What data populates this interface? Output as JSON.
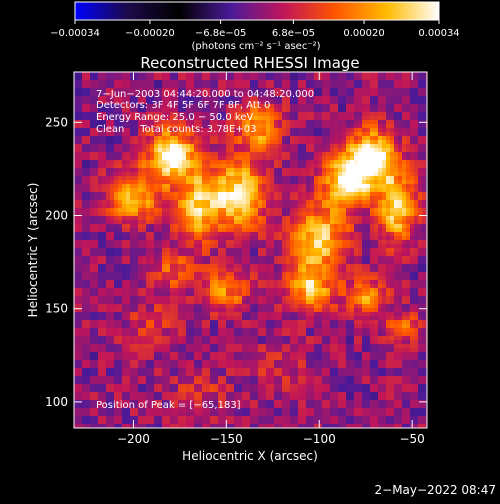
{
  "chart_data": {
    "type": "heatmap",
    "title": "Reconstructed RHESSI Image",
    "xlabel": "Heliocentric X (arcsec)",
    "ylabel": "Heliocentric Y (arcsec)",
    "xlim": [
      -232,
      -42
    ],
    "ylim": [
      86,
      277
    ],
    "x_ticks": [
      {
        "value": -200,
        "label": "−200"
      },
      {
        "value": -150,
        "label": "−150"
      },
      {
        "value": -100,
        "label": "−100"
      },
      {
        "value": -50,
        "label": "−50"
      }
    ],
    "y_ticks": [
      {
        "value": 100,
        "label": "100"
      },
      {
        "value": 150,
        "label": "150"
      },
      {
        "value": 200,
        "label": "200"
      },
      {
        "value": 250,
        "label": "250"
      }
    ],
    "colorbar": {
      "range": [
        -0.00034,
        0.00034
      ],
      "tick_values": [
        -0.00034,
        -0.0002,
        -6.8e-05,
        6.8e-05,
        0.0002,
        0.00034
      ],
      "tick_labels": [
        "−0.00034",
        "−0.00020",
        "−6.8e−05",
        "6.8e−05",
        "0.00020",
        "0.00034"
      ],
      "units": "(photons cm⁻² s⁻¹ asec⁻²)",
      "colormap": [
        "#0000ff",
        "#1c0a4a",
        "#000000",
        "#4b1a9a",
        "#c0155a",
        "#ff5500",
        "#ffbb00",
        "#ffffff"
      ]
    },
    "sources": [
      {
        "x": -180,
        "y": 232,
        "peak": 0.00034,
        "sx": 9,
        "sy": 10
      },
      {
        "x": -200,
        "y": 210,
        "peak": 0.00026,
        "sx": 9,
        "sy": 9
      },
      {
        "x": -165,
        "y": 205,
        "peak": 0.00024,
        "sx": 9,
        "sy": 14
      },
      {
        "x": -143,
        "y": 212,
        "peak": 0.0003,
        "sx": 10,
        "sy": 13
      },
      {
        "x": -132,
        "y": 247,
        "peak": 0.00022,
        "sx": 8,
        "sy": 9
      },
      {
        "x": -85,
        "y": 218,
        "peak": 0.00032,
        "sx": 10,
        "sy": 9
      },
      {
        "x": -72,
        "y": 232,
        "peak": 0.00034,
        "sx": 9,
        "sy": 10
      },
      {
        "x": -58,
        "y": 205,
        "peak": 0.0003,
        "sx": 7,
        "sy": 13
      },
      {
        "x": -100,
        "y": 188,
        "peak": 0.00026,
        "sx": 11,
        "sy": 12
      },
      {
        "x": -105,
        "y": 162,
        "peak": 0.00024,
        "sx": 9,
        "sy": 9
      },
      {
        "x": -75,
        "y": 156,
        "peak": 0.0002,
        "sx": 8,
        "sy": 7
      },
      {
        "x": -150,
        "y": 160,
        "peak": 0.00018,
        "sx": 9,
        "sy": 8
      },
      {
        "x": -180,
        "y": 170,
        "peak": 0.00012,
        "sx": 10,
        "sy": 8
      },
      {
        "x": -55,
        "y": 140,
        "peak": 0.00014,
        "sx": 8,
        "sy": 6
      },
      {
        "x": -190,
        "y": 140,
        "peak": 8e-05,
        "sx": 12,
        "sy": 10
      },
      {
        "x": -120,
        "y": 118,
        "peak": 6e-05,
        "sx": 14,
        "sy": 10
      },
      {
        "x": -165,
        "y": 105,
        "peak": 8e-05,
        "sx": 10,
        "sy": 8
      }
    ],
    "peak_position": [
      -65,
      183
    ]
  },
  "annotations": [
    "7−Jun−2003 04:44:20.000 to 04:48:20.000",
    "Detectors: 3F 4F 5F 6F 7F 8F, Att 0",
    "Energy Range: 25.0 − 50.0 keV",
    "Clean     Total counts: 3.78E+03"
  ],
  "peak_text": "Position of Peak = [−65,183]",
  "timestamp": "2−May−2022 08:47"
}
